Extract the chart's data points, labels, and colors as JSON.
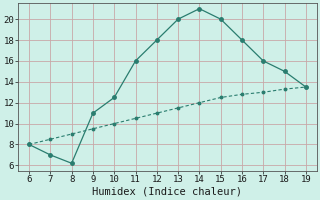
{
  "xlabel": "Humidex (Indice chaleur)",
  "x": [
    6,
    7,
    8,
    9,
    10,
    11,
    12,
    13,
    14,
    15,
    16,
    17,
    18,
    19
  ],
  "y_curve": [
    8,
    7,
    6.2,
    11,
    12.5,
    16,
    18,
    20,
    21,
    20,
    18,
    16,
    15,
    13.5
  ],
  "y_linear": [
    8,
    8.5,
    9.0,
    9.5,
    10.0,
    10.5,
    11.0,
    11.5,
    12.0,
    12.5,
    12.8,
    13.0,
    13.3,
    13.5
  ],
  "line_color": "#2a7d6f",
  "bg_color": "#cff0e8",
  "grid_teal_color": "#a8ddd4",
  "grid_pink_color": "#c8a8a8",
  "xlim": [
    5.5,
    19.5
  ],
  "ylim": [
    5.5,
    21.5
  ],
  "xticks": [
    6,
    7,
    8,
    9,
    10,
    11,
    12,
    13,
    14,
    15,
    16,
    17,
    18,
    19
  ],
  "yticks": [
    6,
    8,
    10,
    12,
    14,
    16,
    18,
    20
  ],
  "tick_fontsize": 6.5,
  "label_fontsize": 7.5
}
